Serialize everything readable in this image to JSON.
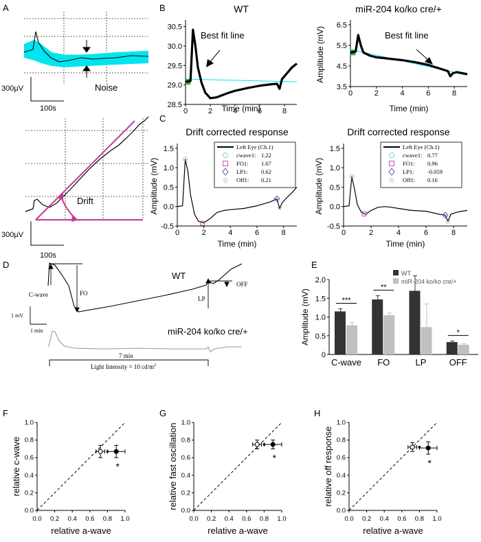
{
  "panel_labels": {
    "A": "A",
    "B": "B",
    "C": "C",
    "D": "D",
    "E": "E",
    "F": "F",
    "G": "G",
    "H": "H"
  },
  "colors": {
    "cyan": "#00e5ee",
    "magenta": "#c2389a",
    "green": "#3aa63a",
    "dark_bar": "#333333",
    "light_bar": "#c0c0c0",
    "trace": "#000000",
    "gray_trace": "#999999"
  },
  "panelA": {
    "noise_label": "Noise",
    "drift_label": "Drift",
    "scale_top": "300µV",
    "time_top": "100s",
    "scale_bottom": "300µV",
    "time_bottom": "100s"
  },
  "chart_data": [
    {
      "id": "B-WT",
      "type": "line",
      "title": "WT",
      "xlabel": "Time (min)",
      "ylabel": "",
      "xlim": [
        0,
        9
      ],
      "ylim": [
        28.5,
        30.6
      ],
      "xticks": [
        "0",
        "2",
        "4",
        "6",
        "8"
      ],
      "yticks": [
        "28.5",
        "29.0",
        "29.5",
        "30.0",
        "30.5"
      ],
      "annotation": "Best fit line",
      "x": [
        0,
        0.4,
        0.6,
        0.8,
        1.0,
        1.3,
        1.6,
        2.0,
        2.5,
        3,
        3.5,
        4,
        5,
        6,
        7,
        7.4,
        7.6,
        7.8,
        8.2,
        8.6,
        9
      ],
      "y": [
        29.08,
        29.1,
        30.42,
        30.0,
        29.45,
        29.05,
        28.8,
        28.66,
        28.68,
        28.74,
        28.8,
        28.85,
        28.92,
        28.98,
        29.02,
        29.03,
        28.9,
        29.15,
        29.3,
        29.45,
        29.55
      ],
      "fit_line": {
        "x": [
          0,
          9
        ],
        "y": [
          29.15,
          29.08
        ]
      }
    },
    {
      "id": "B-KO",
      "type": "line",
      "title": "miR-204 ko/ko cre/+",
      "xlabel": "Time (min)",
      "ylabel": "Amplitude (mV)",
      "xlim": [
        0,
        9
      ],
      "ylim": [
        3.5,
        6.6
      ],
      "xticks": [
        "0",
        "2",
        "4",
        "6",
        "8"
      ],
      "yticks": [
        "3.5",
        "4.5",
        "5.5",
        "6.5"
      ],
      "annotation": "Best fit line",
      "x": [
        0,
        0.4,
        0.6,
        0.8,
        1.0,
        1.5,
        2,
        3,
        4,
        5,
        6,
        7,
        7.5,
        7.7,
        7.9,
        8.2,
        8.6,
        9
      ],
      "y": [
        5.15,
        5.2,
        6.0,
        5.5,
        5.15,
        5.0,
        4.92,
        4.85,
        4.78,
        4.68,
        4.55,
        4.35,
        4.25,
        4.0,
        4.15,
        4.2,
        4.15,
        4.1
      ],
      "fit_line": {
        "x": [
          0,
          9
        ],
        "y": [
          5.3,
          4.05
        ]
      }
    },
    {
      "id": "C-WT",
      "type": "line",
      "title": "Drift corrected response",
      "xlabel": "Time (min)",
      "ylabel": "Amplitude (mV)",
      "xlim": [
        0,
        9
      ],
      "ylim": [
        -0.5,
        1.55
      ],
      "xticks": [
        "0",
        "2",
        "4",
        "6",
        "8"
      ],
      "yticks": [
        "-0.5",
        "0.0",
        "0.5",
        "1.0",
        "1.5"
      ],
      "legend": [
        {
          "label": "Left Eye (Ch.1)",
          "marker": "line",
          "value": ""
        },
        {
          "label": "cwave1:",
          "marker": "circle",
          "value": "1.22"
        },
        {
          "label": "FO1:",
          "marker": "square",
          "value": "1.67"
        },
        {
          "label": "LP1:",
          "marker": "diamond",
          "value": "0.62"
        },
        {
          "label": "Off1:",
          "marker": "star",
          "value": "0.21"
        }
      ],
      "x": [
        0,
        0.4,
        0.6,
        0.8,
        1.0,
        1.3,
        1.6,
        2.0,
        2.5,
        3,
        3.5,
        4,
        5,
        6,
        7,
        7.5,
        7.7,
        7.9,
        8.3,
        8.7,
        9
      ],
      "y": [
        0.0,
        0.02,
        1.22,
        0.9,
        0.3,
        -0.2,
        -0.38,
        -0.42,
        -0.3,
        -0.15,
        -0.1,
        -0.08,
        -0.05,
        0.02,
        0.12,
        0.2,
        -0.05,
        0.1,
        0.25,
        0.38,
        0.5
      ],
      "markers": {
        "cwave": [
          0.6,
          1.22
        ],
        "fo": [
          1.9,
          -0.43
        ],
        "lp": [
          7.5,
          0.2
        ],
        "off": [
          7.7,
          -0.02
        ]
      }
    },
    {
      "id": "C-KO",
      "type": "line",
      "title": "Drift corrected response",
      "xlabel": "Time (min)",
      "ylabel": "Amplitude (mV)",
      "xlim": [
        0,
        9
      ],
      "ylim": [
        -0.5,
        1.55
      ],
      "xticks": [
        "0",
        "2",
        "4",
        "6",
        "8"
      ],
      "yticks": [
        "-0.5",
        "0.0",
        "0.5",
        "1.0",
        "1.5"
      ],
      "legend": [
        {
          "label": "Left Eye (Ch.1)",
          "marker": "line",
          "value": ""
        },
        {
          "label": "cwave1:",
          "marker": "circle",
          "value": "0.77"
        },
        {
          "label": "FO1:",
          "marker": "square",
          "value": "0.96"
        },
        {
          "label": "LP1:",
          "marker": "diamond",
          "value": "-0.059"
        },
        {
          "label": "Off1:",
          "marker": "star",
          "value": "0.16"
        }
      ],
      "x": [
        0,
        0.4,
        0.6,
        0.8,
        1.0,
        1.3,
        1.6,
        2.0,
        2.5,
        3,
        3.5,
        4,
        5,
        6,
        7,
        7.4,
        7.6,
        7.8,
        8.2,
        8.6,
        9
      ],
      "y": [
        0.0,
        0.02,
        0.77,
        0.45,
        0.05,
        -0.15,
        -0.2,
        -0.1,
        -0.02,
        0.0,
        -0.02,
        -0.05,
        -0.1,
        -0.12,
        -0.2,
        -0.22,
        -0.38,
        -0.2,
        -0.15,
        -0.12,
        -0.1
      ],
      "markers": {
        "cwave": [
          0.6,
          0.77
        ],
        "fo": [
          1.5,
          -0.19
        ],
        "lp": [
          7.4,
          -0.22
        ],
        "off": [
          7.6,
          -0.38
        ]
      }
    },
    {
      "id": "E",
      "type": "bar",
      "xlabel": "",
      "ylabel": "Amplitude (mV)",
      "ylim": [
        0,
        2.0
      ],
      "yticks": [
        "0",
        "0.5",
        "1.0",
        "1.5",
        "2.0"
      ],
      "categories": [
        "C-wave",
        "FO",
        "LP",
        "OFF"
      ],
      "series": [
        {
          "name": "WT",
          "values": [
            1.15,
            1.47,
            1.7,
            0.33
          ],
          "errors": [
            0.07,
            0.1,
            0.4,
            0.03
          ]
        },
        {
          "name": "miR-204 ko/ko cre/+",
          "values": [
            0.78,
            1.05,
            0.73,
            0.26
          ],
          "errors": [
            0.07,
            0.06,
            0.62,
            0.03
          ]
        }
      ],
      "significance": [
        "***",
        "**",
        "",
        "*"
      ]
    },
    {
      "id": "F",
      "type": "scatter",
      "xlabel": "relative a-wave",
      "ylabel": "relative c-wave",
      "xlim": [
        0,
        1
      ],
      "ylim": [
        0,
        1
      ],
      "xticks": [
        "0.0",
        "0.2",
        "0.4",
        "0.6",
        "0.8",
        "1.0"
      ],
      "yticks": [
        "0.0",
        "0.2",
        "0.4",
        "0.6",
        "0.8",
        "1.0"
      ],
      "points": [
        {
          "x": 0.72,
          "y": 0.67,
          "xerr": 0.05,
          "yerr": 0.07,
          "style": "open"
        },
        {
          "x": 0.8,
          "y": 0.67,
          "xerr": 0,
          "yerr": 0,
          "style": "small"
        },
        {
          "x": 0.9,
          "y": 0.67,
          "xerr": 0.1,
          "yerr": 0.07,
          "style": "filled"
        }
      ],
      "star": "*"
    },
    {
      "id": "G",
      "type": "scatter",
      "xlabel": "relative a-wave",
      "ylabel": "relative fast  oscillation",
      "xlim": [
        0,
        1
      ],
      "ylim": [
        0,
        1
      ],
      "xticks": [
        "0.0",
        "0.2",
        "0.4",
        "0.6",
        "0.8",
        "1.0"
      ],
      "yticks": [
        "0.0",
        "0.2",
        "0.4",
        "0.6",
        "0.8",
        "1.0"
      ],
      "points": [
        {
          "x": 0.72,
          "y": 0.75,
          "xerr": 0.05,
          "yerr": 0.05,
          "style": "open"
        },
        {
          "x": 0.8,
          "y": 0.75,
          "xerr": 0,
          "yerr": 0,
          "style": "small"
        },
        {
          "x": 0.9,
          "y": 0.75,
          "xerr": 0.1,
          "yerr": 0.05,
          "style": "filled"
        }
      ],
      "star": "*"
    },
    {
      "id": "H",
      "type": "scatter",
      "xlabel": "relative a-wave",
      "ylabel": "relative off response",
      "xlim": [
        0,
        1
      ],
      "ylim": [
        0,
        1
      ],
      "xticks": [
        "0.0",
        "0.2",
        "0.4",
        "0.6",
        "0.8",
        "1.0"
      ],
      "yticks": [
        "0.0",
        "0.2",
        "0.4",
        "0.6",
        "0.8",
        "1.0"
      ],
      "points": [
        {
          "x": 0.72,
          "y": 0.72,
          "xerr": 0.05,
          "yerr": 0.05,
          "style": "open"
        },
        {
          "x": 0.8,
          "y": 0.72,
          "xerr": 0,
          "yerr": 0,
          "style": "small"
        },
        {
          "x": 0.9,
          "y": 0.71,
          "xerr": 0.1,
          "yerr": 0.07,
          "style": "filled"
        }
      ],
      "star": "*"
    }
  ],
  "panelD": {
    "wt_label": "WT",
    "ko_label": "miR-204 ko/ko cre/+",
    "cwave": "C-wave",
    "fo": "FO",
    "lp": "LP",
    "off": "OFF",
    "scale_mv": "1 mV",
    "scale_min": "1 min",
    "duration": "7 min",
    "light_label": "Light Intensity = 10 cd/m",
    "light_sup": "2"
  }
}
